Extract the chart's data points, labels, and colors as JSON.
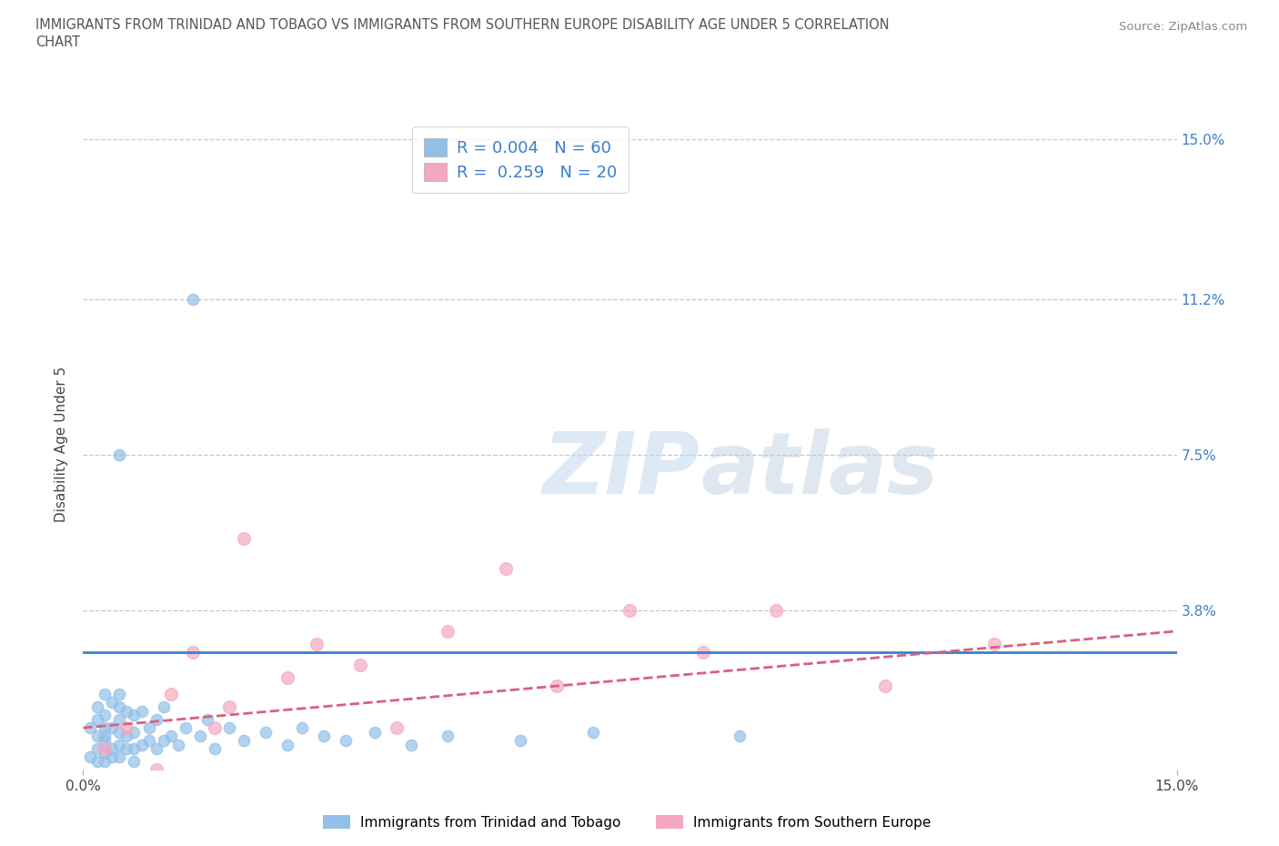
{
  "title_line1": "IMMIGRANTS FROM TRINIDAD AND TOBAGO VS IMMIGRANTS FROM SOUTHERN EUROPE DISABILITY AGE UNDER 5 CORRELATION",
  "title_line2": "CHART",
  "source_text": "Source: ZipAtlas.com",
  "ylabel": "Disability Age Under 5",
  "xmin": 0.0,
  "xmax": 0.15,
  "ymin": 0.0,
  "ymax": 0.155,
  "yticks": [
    0.038,
    0.075,
    0.112,
    0.15
  ],
  "ytick_labels": [
    "3.8%",
    "7.5%",
    "11.2%",
    "15.0%"
  ],
  "xticks": [
    0.0,
    0.15
  ],
  "xtick_labels": [
    "0.0%",
    "15.0%"
  ],
  "color_blue": "#92C0E8",
  "color_pink": "#F4A8C0",
  "color_trend_blue": "#3A7FCC",
  "color_trend_pink": "#D96080",
  "color_grid": "#C8C8C8",
  "legend_label1": "Immigrants from Trinidad and Tobago",
  "legend_label2": "Immigrants from Southern Europe",
  "blue_x": [
    0.001,
    0.001,
    0.002,
    0.002,
    0.002,
    0.002,
    0.002,
    0.003,
    0.003,
    0.003,
    0.003,
    0.003,
    0.003,
    0.003,
    0.004,
    0.004,
    0.004,
    0.004,
    0.005,
    0.005,
    0.005,
    0.005,
    0.005,
    0.005,
    0.006,
    0.006,
    0.006,
    0.007,
    0.007,
    0.007,
    0.007,
    0.008,
    0.008,
    0.009,
    0.009,
    0.01,
    0.01,
    0.011,
    0.011,
    0.012,
    0.013,
    0.014,
    0.016,
    0.017,
    0.018,
    0.02,
    0.022,
    0.025,
    0.028,
    0.03,
    0.033,
    0.036,
    0.04,
    0.045,
    0.05,
    0.06,
    0.07,
    0.09,
    0.015,
    0.005
  ],
  "blue_y": [
    0.003,
    0.01,
    0.005,
    0.008,
    0.012,
    0.002,
    0.015,
    0.004,
    0.007,
    0.01,
    0.013,
    0.002,
    0.018,
    0.008,
    0.005,
    0.01,
    0.016,
    0.003,
    0.006,
    0.009,
    0.012,
    0.018,
    0.003,
    0.015,
    0.005,
    0.008,
    0.014,
    0.005,
    0.009,
    0.013,
    0.002,
    0.006,
    0.014,
    0.007,
    0.01,
    0.005,
    0.012,
    0.007,
    0.015,
    0.008,
    0.006,
    0.01,
    0.008,
    0.012,
    0.005,
    0.01,
    0.007,
    0.009,
    0.006,
    0.01,
    0.008,
    0.007,
    0.009,
    0.006,
    0.008,
    0.007,
    0.009,
    0.008,
    0.112,
    0.075
  ],
  "pink_x": [
    0.003,
    0.006,
    0.01,
    0.012,
    0.015,
    0.018,
    0.02,
    0.022,
    0.028,
    0.032,
    0.038,
    0.043,
    0.05,
    0.058,
    0.065,
    0.075,
    0.085,
    0.095,
    0.11,
    0.125
  ],
  "pink_y": [
    0.005,
    0.01,
    0.0,
    0.018,
    0.028,
    0.01,
    0.015,
    0.055,
    0.022,
    0.03,
    0.025,
    0.01,
    0.033,
    0.048,
    0.02,
    0.038,
    0.028,
    0.038,
    0.02,
    0.03
  ],
  "blue_trend_y0": 0.028,
  "blue_trend_y1": 0.028,
  "pink_trend_y0": 0.01,
  "pink_trend_y1": 0.033
}
